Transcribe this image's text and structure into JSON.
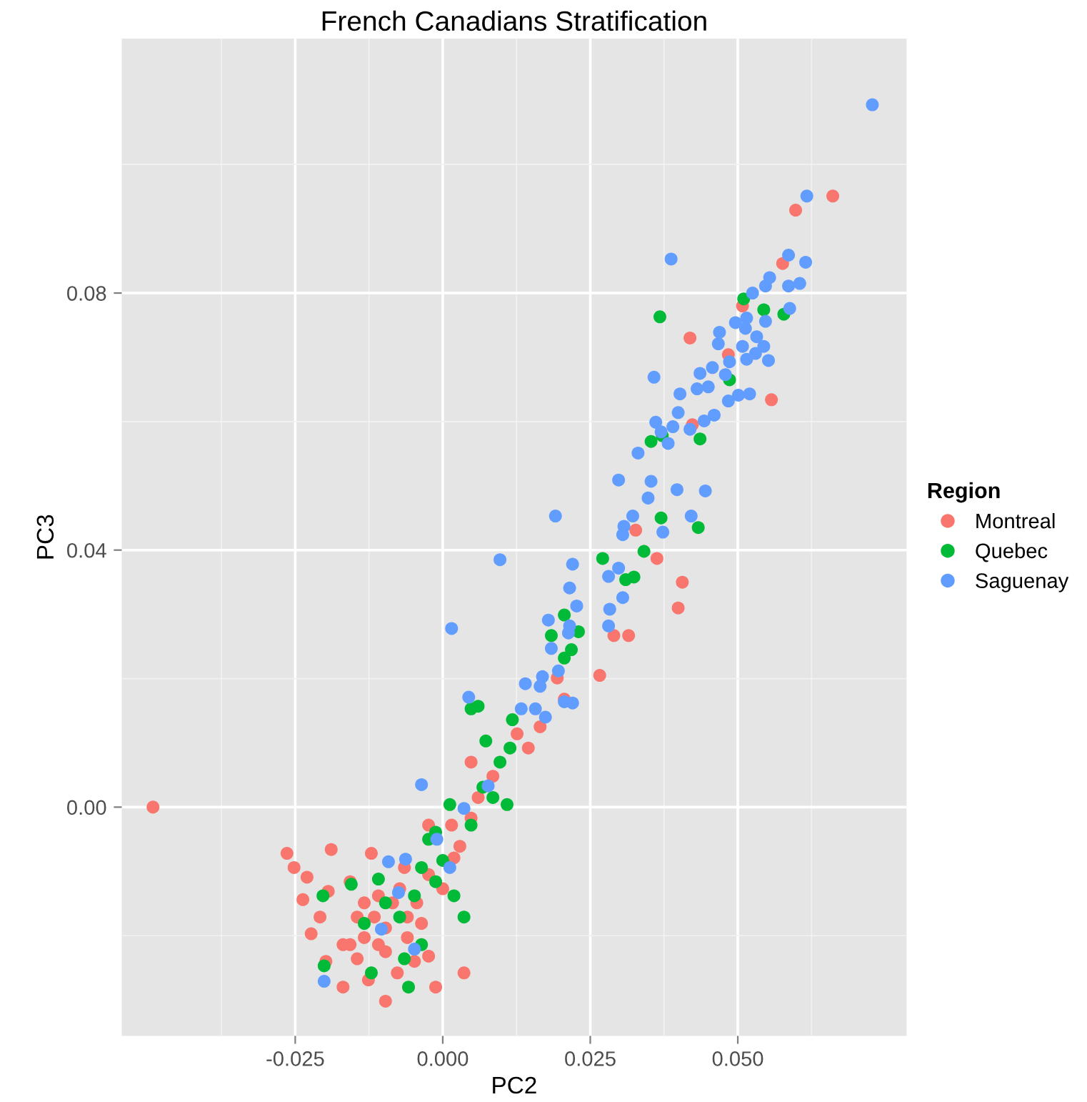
{
  "chart_data": {
    "type": "scatter",
    "title": "French Canadians Stratification",
    "xlabel": "PC2",
    "ylabel": "PC3",
    "legend_title": "Region",
    "xlim": [
      -0.0544,
      0.0786
    ],
    "ylim": [
      -0.0356,
      0.1196
    ],
    "xticks": [
      {
        "value": -0.025,
        "label": "-0.025"
      },
      {
        "value": 0,
        "label": "0.000"
      },
      {
        "value": 0.025,
        "label": "0.025"
      },
      {
        "value": 0.05,
        "label": "0.050"
      }
    ],
    "yticks": [
      {
        "value": 0,
        "label": "0.00"
      },
      {
        "value": 0.04,
        "label": "0.04"
      },
      {
        "value": 0.08,
        "label": "0.08"
      }
    ],
    "grid": true,
    "legend": "right",
    "marker": "circle",
    "series": [
      {
        "name": "Montreal",
        "color": "#f8766d",
        "x": [
          -0.0491,
          -0.0264,
          -0.0252,
          -0.023,
          -0.0237,
          -0.0208,
          -0.0189,
          -0.0194,
          -0.0223,
          -0.0198,
          -0.0169,
          -0.0145,
          -0.0126,
          -0.0109,
          -0.0097,
          -0.0085,
          -0.0116,
          -0.0133,
          -0.006,
          -0.0048,
          -0.0024,
          -0.0036,
          -0.0073,
          -0.0024,
          0.0,
          0.0019,
          0.0029,
          0.0015,
          0.0048,
          0.006,
          0.0085,
          0.0048,
          0.0126,
          0.0165,
          0.0145,
          0.0206,
          0.0266,
          0.0315,
          0.0419,
          0.0423,
          0.0557,
          0.0598,
          0.0661,
          0.0576,
          0.0508,
          0.0484,
          0.0406,
          0.0363,
          0.0399,
          0.0327,
          0.029,
          0.0194,
          0.0036,
          -0.0012,
          -0.0169,
          -0.0097,
          -0.0157,
          -0.0065,
          -0.0024,
          -0.0121,
          -0.0145,
          -0.0109,
          -0.006,
          -0.0097,
          -0.0133,
          -0.0157,
          -0.0077,
          -0.0044
        ],
        "values": [
          0.0,
          -0.0072,
          -0.0094,
          -0.0109,
          -0.0144,
          -0.0171,
          -0.0066,
          -0.0131,
          -0.0197,
          -0.024,
          -0.0214,
          -0.0236,
          -0.0269,
          -0.0214,
          -0.0188,
          -0.0149,
          -0.0171,
          -0.0203,
          -0.0203,
          -0.024,
          -0.0232,
          -0.0181,
          -0.0127,
          -0.0105,
          -0.0127,
          -0.0079,
          -0.0061,
          -0.0028,
          -0.0017,
          0.0015,
          0.0048,
          0.007,
          0.0114,
          0.0125,
          0.0092,
          0.0168,
          0.0205,
          0.0267,
          0.073,
          0.0595,
          0.0634,
          0.0929,
          0.0951,
          0.0846,
          0.078,
          0.0704,
          0.035,
          0.0387,
          0.031,
          0.0431,
          0.0267,
          0.0201,
          -0.0258,
          -0.028,
          -0.028,
          -0.0302,
          -0.0116,
          -0.0094,
          -0.0028,
          -0.0072,
          -0.0171,
          -0.0138,
          -0.0171,
          -0.0225,
          -0.0149,
          -0.0214,
          -0.0258,
          -0.0149
        ]
      },
      {
        "name": "Quebec",
        "color": "#00ba38",
        "x": [
          -0.0203,
          -0.0155,
          -0.0109,
          -0.0133,
          -0.0097,
          -0.0073,
          -0.0048,
          -0.0036,
          -0.0012,
          0.0,
          -0.0024,
          0.0019,
          0.0036,
          -0.0036,
          -0.0065,
          -0.0058,
          -0.0121,
          -0.0201,
          -0.0012,
          0.0012,
          0.0048,
          0.0068,
          0.0085,
          0.0097,
          0.0109,
          0.0114,
          0.0073,
          0.0048,
          0.0118,
          0.006,
          0.0206,
          0.0218,
          0.0184,
          0.023,
          0.0206,
          0.031,
          0.0324,
          0.0341,
          0.0271,
          0.037,
          0.0433,
          0.0436,
          0.0372,
          0.0368,
          0.051,
          0.0544,
          0.0578,
          0.0353,
          0.0486
        ],
        "values": [
          -0.0138,
          -0.012,
          -0.0112,
          -0.0181,
          -0.0149,
          -0.0171,
          -0.0138,
          -0.0094,
          -0.0116,
          -0.0083,
          -0.005,
          -0.0138,
          -0.0171,
          -0.0214,
          -0.0236,
          -0.028,
          -0.0258,
          -0.0247,
          -0.0039,
          0.0004,
          -0.0028,
          0.0031,
          0.0015,
          0.007,
          0.0004,
          0.0092,
          0.0103,
          0.0153,
          0.0136,
          0.0157,
          0.0232,
          0.0245,
          0.0267,
          0.0273,
          0.0299,
          0.0354,
          0.0358,
          0.0398,
          0.0387,
          0.045,
          0.0435,
          0.0573,
          0.0578,
          0.0763,
          0.0791,
          0.0774,
          0.0767,
          0.0569,
          0.0665
        ]
      },
      {
        "name": "Saguenay",
        "color": "#619cff",
        "x": [
          0.0728,
          0.0617,
          0.0387,
          0.0586,
          0.0615,
          0.0554,
          0.0547,
          0.0525,
          0.0586,
          0.0605,
          0.0588,
          0.0547,
          0.0515,
          0.0496,
          0.0513,
          0.0469,
          0.0467,
          0.0508,
          0.0532,
          0.0544,
          0.053,
          0.0515,
          0.0486,
          0.0457,
          0.0436,
          0.0358,
          0.0479,
          0.0552,
          0.0431,
          0.045,
          0.0402,
          0.052,
          0.0501,
          0.0484,
          0.0399,
          0.046,
          0.0361,
          0.0443,
          0.039,
          0.037,
          0.0419,
          0.0382,
          0.0331,
          0.0298,
          0.0353,
          0.0348,
          0.0397,
          0.0445,
          0.0191,
          0.0322,
          0.0307,
          0.0305,
          0.0373,
          0.0421,
          0.0097,
          0.022,
          0.0298,
          0.0281,
          0.0215,
          0.0227,
          0.0283,
          0.0305,
          0.0179,
          0.0215,
          0.0213,
          0.0281,
          0.0184,
          0.0196,
          0.0015,
          0.0169,
          0.014,
          0.0165,
          0.0044,
          0.0133,
          0.0157,
          0.0206,
          0.022,
          0.0174,
          -0.0036,
          0.0077,
          0.0036,
          -0.001,
          -0.0092,
          -0.0063,
          0.0012,
          -0.0075,
          -0.0104,
          -0.0201,
          -0.0048
        ],
        "values": [
          0.1093,
          0.0951,
          0.0853,
          0.0859,
          0.0848,
          0.0824,
          0.0811,
          0.08,
          0.0811,
          0.0815,
          0.0776,
          0.0756,
          0.0761,
          0.0754,
          0.0745,
          0.0739,
          0.0721,
          0.0717,
          0.0732,
          0.0717,
          0.0706,
          0.0697,
          0.0693,
          0.0684,
          0.0675,
          0.0669,
          0.0673,
          0.0695,
          0.0651,
          0.0654,
          0.0643,
          0.0643,
          0.0641,
          0.0632,
          0.0614,
          0.061,
          0.0599,
          0.0601,
          0.0592,
          0.0584,
          0.0588,
          0.0566,
          0.0551,
          0.0509,
          0.0507,
          0.0481,
          0.0494,
          0.0492,
          0.0453,
          0.0453,
          0.0437,
          0.0424,
          0.0428,
          0.0453,
          0.0385,
          0.0378,
          0.0372,
          0.0359,
          0.0341,
          0.0313,
          0.0308,
          0.0326,
          0.0291,
          0.0282,
          0.0271,
          0.0282,
          0.0247,
          0.0212,
          0.0278,
          0.0203,
          0.0192,
          0.0188,
          0.0171,
          0.0153,
          0.0153,
          0.0164,
          0.0162,
          0.014,
          0.0035,
          0.0033,
          -0.0002,
          -0.005,
          -0.0085,
          -0.0081,
          -0.0094,
          -0.0133,
          -0.019,
          -0.0271,
          -0.0221
        ]
      }
    ]
  }
}
